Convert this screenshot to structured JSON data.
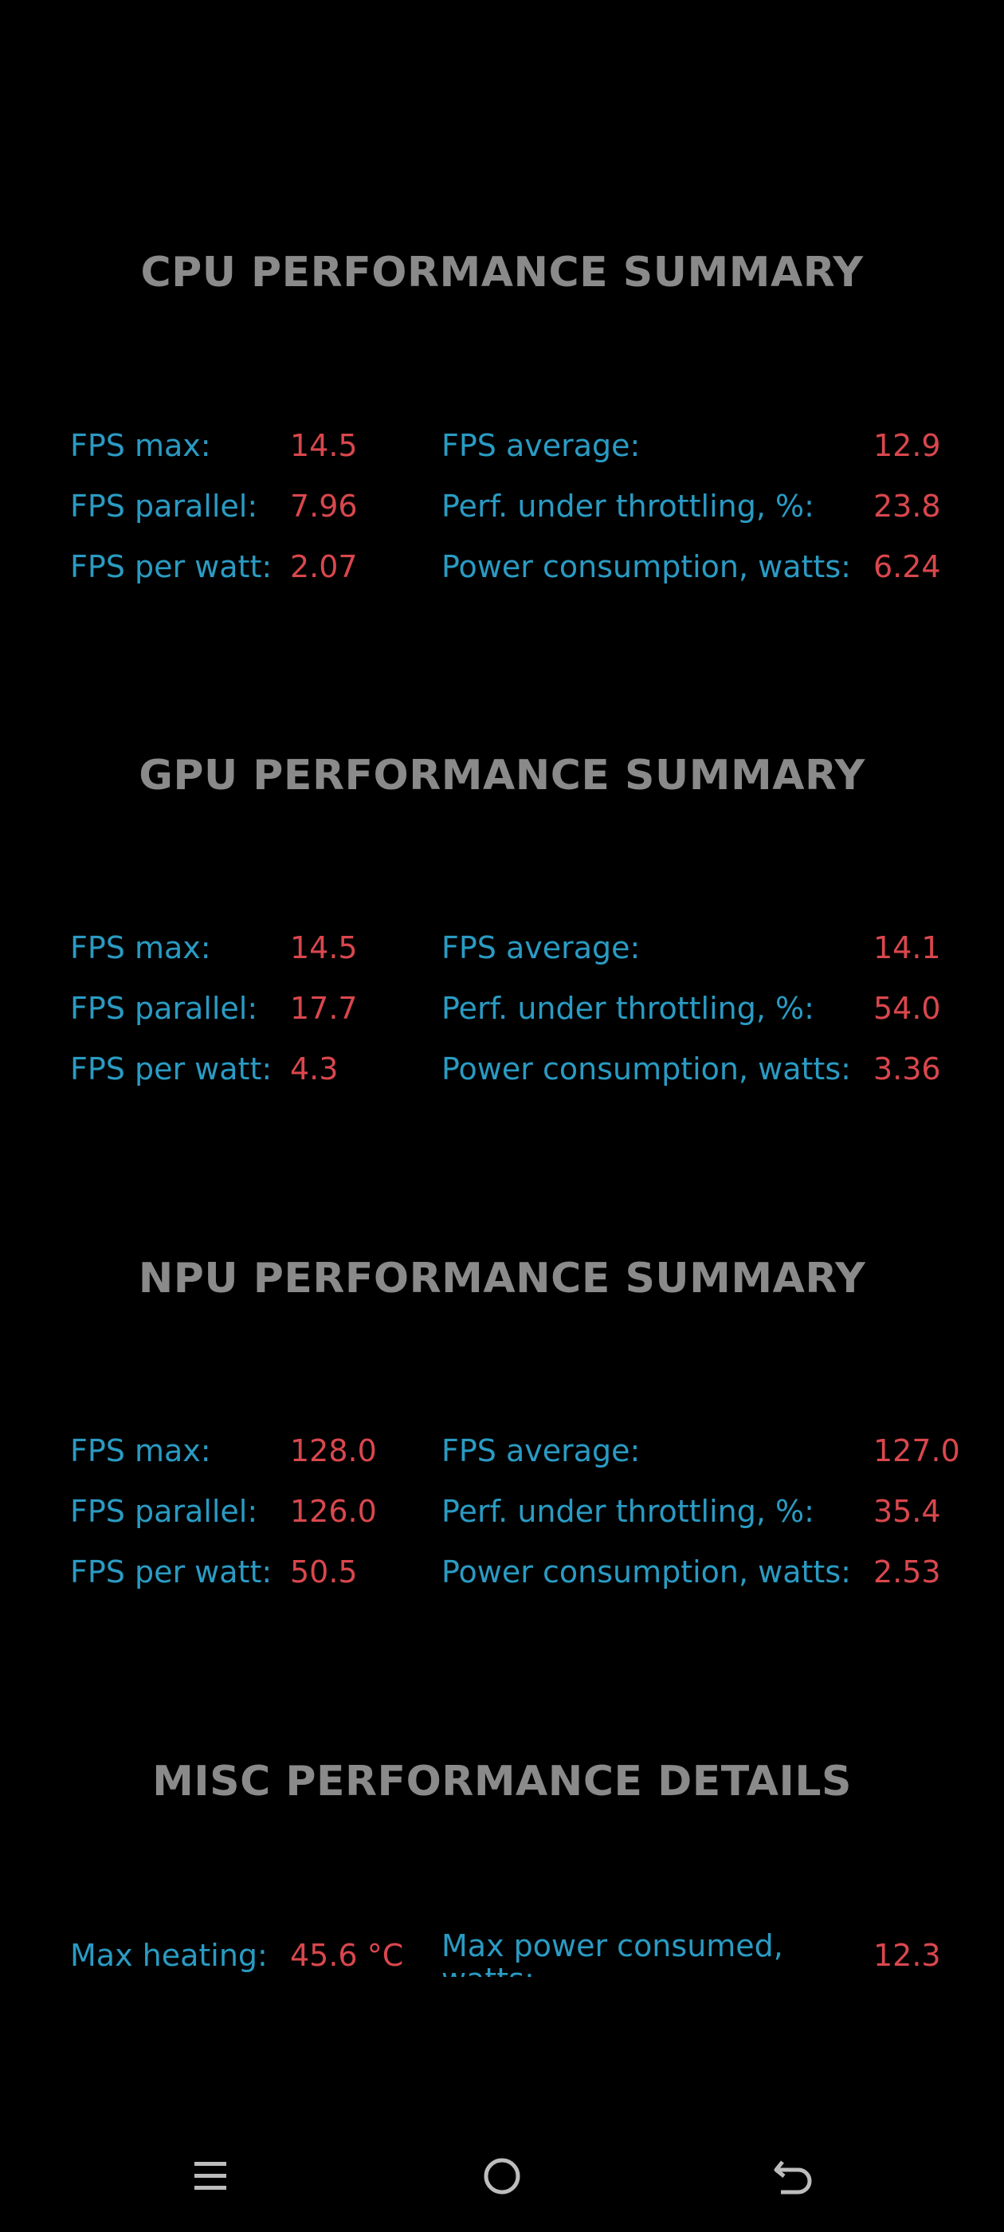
{
  "sections": [
    {
      "title": "CPU PERFORMANCE SUMMARY",
      "rows": [
        {
          "l1": "FPS max:",
          "v1": "14.5",
          "l2": "FPS average:",
          "v2": "12.9"
        },
        {
          "l1": "FPS parallel:",
          "v1": "7.96",
          "l2": "Perf. under throttling, %:",
          "v2": "23.8"
        },
        {
          "l1": "FPS per watt:",
          "v1": "2.07",
          "l2": "Power consumption, watts:",
          "v2": "6.24"
        }
      ]
    },
    {
      "title": "GPU PERFORMANCE SUMMARY",
      "rows": [
        {
          "l1": "FPS max:",
          "v1": "14.5",
          "l2": "FPS average:",
          "v2": "14.1"
        },
        {
          "l1": "FPS parallel:",
          "v1": "17.7",
          "l2": "Perf. under throttling, %:",
          "v2": "54.0"
        },
        {
          "l1": "FPS per watt:",
          "v1": "4.3",
          "l2": "Power consumption, watts:",
          "v2": "3.36"
        }
      ]
    },
    {
      "title": "NPU PERFORMANCE SUMMARY",
      "rows": [
        {
          "l1": "FPS max:",
          "v1": "128.0",
          "l2": "FPS average:",
          "v2": "127.0"
        },
        {
          "l1": "FPS parallel:",
          "v1": "126.0",
          "l2": "Perf. under throttling, %:",
          "v2": "35.4"
        },
        {
          "l1": "FPS per watt:",
          "v1": "50.5",
          "l2": "Power consumption, watts:",
          "v2": "2.53"
        }
      ]
    }
  ],
  "misc": {
    "title": "MISC PERFORMANCE DETAILS",
    "l1": "Max heating:",
    "v1": "45.6 °C",
    "l2": "Max power consumed, watts:",
    "v2": "12.3"
  },
  "nav": {
    "menu_icon": "menu-icon",
    "home_icon": "home-icon",
    "back_icon": "back-icon"
  },
  "colors": {
    "background": "#000000",
    "title": "#8a8a8a",
    "label": "#2a9bc3",
    "value": "#d9474d"
  }
}
